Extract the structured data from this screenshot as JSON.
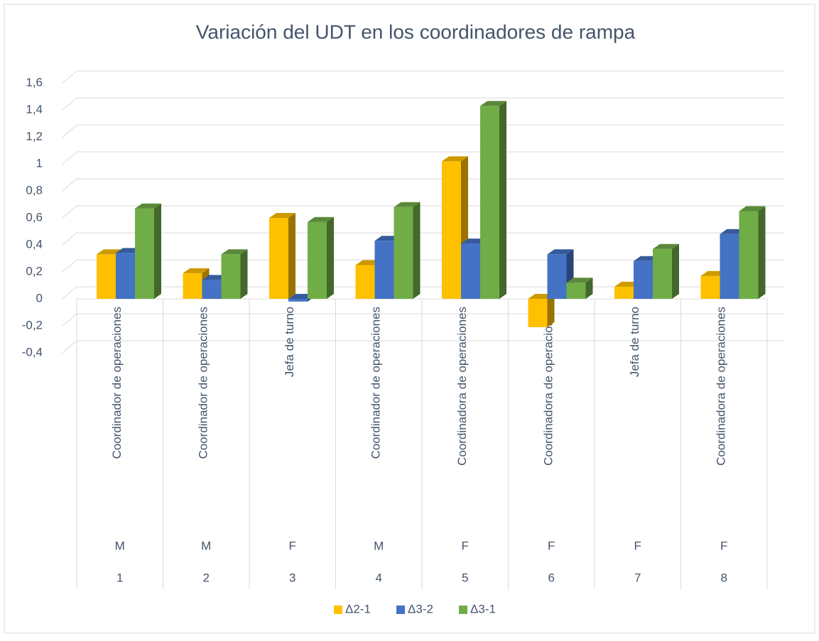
{
  "chart_data": {
    "type": "bar3d",
    "title": "Variación del UDT en los coordinadores de rampa",
    "categories": [
      "Coordinador de operaciones",
      "Coordinador de operaciones",
      "Jefa de turno",
      "Coordinador de operaciones",
      "Coordinadora de operaciones",
      "Coordinadora de operaciones",
      "Jefa de turno",
      "Coordinadora de operaciones"
    ],
    "sub_categories": [
      "M",
      "M",
      "F",
      "M",
      "F",
      "F",
      "F",
      "F"
    ],
    "ids": [
      "1",
      "2",
      "3",
      "4",
      "5",
      "6",
      "7",
      "8"
    ],
    "series": [
      {
        "name": "Δ2-1",
        "color": "#ffc000",
        "values": [
          0.33,
          0.19,
          0.6,
          0.25,
          1.02,
          -0.21,
          0.09,
          0.17
        ]
      },
      {
        "name": "Δ3-2",
        "color": "#4472c4",
        "values": [
          0.34,
          0.14,
          -0.02,
          0.43,
          0.41,
          0.33,
          0.28,
          0.48
        ]
      },
      {
        "name": "Δ3-1",
        "color": "#70ad47",
        "values": [
          0.67,
          0.33,
          0.57,
          0.68,
          1.43,
          0.12,
          0.37,
          0.65
        ]
      }
    ],
    "ylim": [
      -0.4,
      1.6
    ],
    "yticks": [
      {
        "value": -0.4,
        "label": "-0,4"
      },
      {
        "value": -0.2,
        "label": "-0,2"
      },
      0,
      {
        "value": 0.2,
        "label": "0,2"
      },
      {
        "value": 0.4,
        "label": "0,4"
      },
      {
        "value": 0.6,
        "label": "0,6"
      },
      {
        "value": 0.8,
        "label": "0,8"
      },
      1,
      {
        "value": 1.2,
        "label": "1,2"
      },
      {
        "value": 1.4,
        "label": "1,4"
      },
      {
        "value": 1.6,
        "label": "1,6"
      }
    ],
    "grid": true,
    "legend": "bottom"
  }
}
